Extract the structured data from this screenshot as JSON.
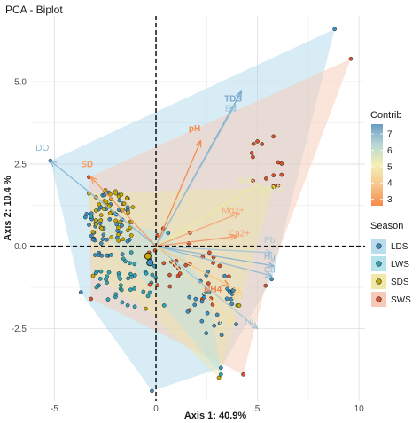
{
  "chart_data": {
    "type": "scatter",
    "title": "PCA - Biplot",
    "xlabel": "Axis 1: 40.9%",
    "ylabel": "Axis 2: 10.4 %",
    "xlim": [
      -6.2,
      10.3
    ],
    "ylim": [
      -4.7,
      7.0
    ],
    "x_ticks": [
      -5,
      0,
      5,
      10
    ],
    "y_ticks": [
      -2.5,
      0.0,
      2.5,
      5.0
    ],
    "x_tick_labels": [
      "-5",
      "0",
      "5",
      "10"
    ],
    "y_tick_labels": [
      "-2.5",
      "0.0",
      "2.5",
      "5.0"
    ],
    "grid": true,
    "legend_placement": "right",
    "contrib_legend": {
      "title": "Contrib",
      "min": 2.6,
      "max": 7.6,
      "ticks": [
        3,
        4,
        5,
        6,
        7
      ],
      "colors": [
        "#f58a4a",
        "#f6c58c",
        "#f4f1b4",
        "#b9d7d6",
        "#6a9cc3"
      ]
    },
    "season_legend": {
      "title": "Season",
      "items": [
        {
          "name": "LDS",
          "color": "#3d8fbf",
          "fill": "#b9dcef"
        },
        {
          "name": "LWS",
          "color": "#2aa6b8",
          "fill": "#b6e3ea"
        },
        {
          "name": "SDS",
          "color": "#c9a800",
          "fill": "#efe8a8"
        },
        {
          "name": "SWS",
          "color": "#d9532b",
          "fill": "#f6c9b8"
        }
      ]
    },
    "hulls": [
      {
        "name": "LDS",
        "fill": "#a9d5ea",
        "opacity": 0.45,
        "points": [
          [
            -5.2,
            2.6
          ],
          [
            8.8,
            6.6
          ],
          [
            5.7,
            -1.0
          ],
          [
            3.2,
            -3.7
          ],
          [
            -0.2,
            -4.4
          ],
          [
            -3.7,
            -1.4
          ]
        ]
      },
      {
        "name": "SWS",
        "fill": "#f8c9b3",
        "opacity": 0.5,
        "points": [
          [
            -3.3,
            2.1
          ],
          [
            9.6,
            5.7
          ],
          [
            5.4,
            -1.2
          ],
          [
            4.3,
            -3.9
          ],
          [
            -3.2,
            -1.6
          ]
        ]
      },
      {
        "name": "SDS",
        "fill": "#ede6a6",
        "opacity": 0.45,
        "points": [
          [
            -3.3,
            1.6
          ],
          [
            5.8,
            1.8
          ],
          [
            4.1,
            -1.8
          ],
          [
            3.1,
            -4.0
          ],
          [
            -0.5,
            -1.9
          ],
          [
            -3.1,
            -0.9
          ]
        ]
      },
      {
        "name": "LWS",
        "fill": "#b5e0e8",
        "opacity": 0.4,
        "points": [
          [
            -3.2,
            0.9
          ],
          [
            0.6,
            0.4
          ],
          [
            2.6,
            -1.4
          ],
          [
            3.2,
            -3.9
          ],
          [
            0.4,
            -1.8
          ]
        ]
      }
    ],
    "arrows": [
      {
        "name": "DO",
        "x": -5.2,
        "y": 2.6,
        "color": "#8db9d4",
        "lx": -5.6,
        "ly": 2.9
      },
      {
        "name": "SD",
        "x": -3.2,
        "y": 2.1,
        "color": "#f69a62",
        "lx": -3.4,
        "ly": 2.4
      },
      {
        "name": "pH",
        "x": 2.2,
        "y": 3.2,
        "color": "#f48c4e",
        "lx": 1.9,
        "ly": 3.5
      },
      {
        "name": "TDS",
        "x": 4.2,
        "y": 4.7,
        "color": "#7aa9cc",
        "lx": 3.8,
        "ly": 4.4
      },
      {
        "name": "EC",
        "x": 3.9,
        "y": 4.3,
        "color": "#9cc0d2",
        "lx": 3.7,
        "ly": 4.1
      },
      {
        "name": "NO3",
        "x": 5.1,
        "y": 1.9,
        "color": "#edeb9e",
        "lx": 4.4,
        "ly": 1.9
      },
      {
        "name": "Salinity",
        "x": 5.4,
        "y": 1.7,
        "color": "#e6e6b0",
        "lx": 5.6,
        "ly": 1.7
      },
      {
        "name": "Mg2+",
        "x": 4.1,
        "y": 1.0,
        "color": "#f5a77a",
        "lx": 3.8,
        "ly": 1.0
      },
      {
        "name": "Ca2+",
        "x": 4.0,
        "y": 0.3,
        "color": "#f39a6c",
        "lx": 4.1,
        "ly": 0.3
      },
      {
        "name": "Pb",
        "x": 5.7,
        "y": -0.2,
        "color": "#a7c6d6",
        "lx": 5.6,
        "ly": 0.1
      },
      {
        "name": "Hg",
        "x": 5.8,
        "y": -0.6,
        "color": "#8db4cf",
        "lx": 5.6,
        "ly": -0.4
      },
      {
        "name": "Cd",
        "x": 5.7,
        "y": -0.9,
        "color": "#97bcd2",
        "lx": 5.6,
        "ly": -0.8
      },
      {
        "name": "NH4",
        "x": 3.6,
        "y": -1.2,
        "color": "#f07e45",
        "lx": 2.8,
        "ly": -1.4
      },
      {
        "name": "Zn",
        "x": 4.2,
        "y": -1.4,
        "color": "#f6d28a",
        "lx": 4.0,
        "ly": -1.6
      },
      {
        "name": "Ni",
        "x": 5.0,
        "y": -2.5,
        "color": "#a9c7d4",
        "lx": 4.6,
        "ly": -2.4
      },
      {
        "name": "Cu",
        "x": 3.8,
        "y": -2.3,
        "color": "#f5dfa0",
        "lx": 3.4,
        "ly": -2.4
      }
    ],
    "highlight_points": [
      {
        "season": "SDS",
        "x": -0.4,
        "y": -0.3
      },
      {
        "season": "LDS",
        "x": -0.3,
        "y": -0.5
      }
    ]
  }
}
